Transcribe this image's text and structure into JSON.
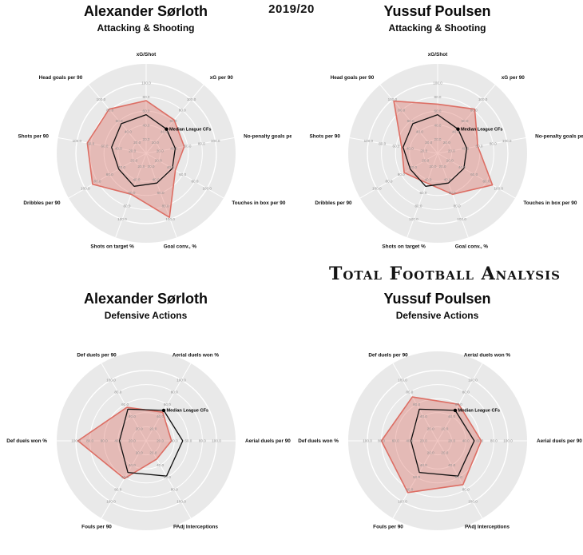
{
  "header": {
    "season": "2019/20",
    "brand": "Total Football Analysis"
  },
  "colors": {
    "player_fill": "rgba(221,110,100,0.38)",
    "player_stroke": "#dd6e64",
    "median_stroke": "#111111",
    "chart_bg": "#e9e9e9",
    "grid_line": "#ffffff"
  },
  "chart_data": [
    {
      "type": "radar",
      "title": "Alexander Sørloth",
      "subtitle": "Attacking & Shooting",
      "legend_label": "Median League CFs",
      "legend_axis": 1,
      "axis_range": [
        0,
        100
      ],
      "ring_ticks": [
        20,
        40,
        60,
        80,
        100
      ],
      "angles_deg": [
        -90,
        -50,
        -10,
        30,
        70,
        110,
        150,
        190,
        230
      ],
      "axes": [
        "xG/Shot",
        "xG per 90",
        "No-penalty goals per 90",
        "Touches in box per 90",
        "Goal conv., %",
        "Shots on target %",
        "Dribbles per 90",
        "Shots per 90",
        "Head goals per 90"
      ],
      "series": [
        {
          "name": "Alexander Sørloth",
          "values": [
            75,
            62,
            55,
            48,
            97,
            62,
            88,
            85,
            82
          ],
          "stroke": "#dd6e64",
          "fill": "rgba(221,110,100,0.38)",
          "width": 1.6
        },
        {
          "name": "Median League CFs",
          "values": [
            55,
            45,
            42,
            43,
            45,
            50,
            45,
            50,
            55
          ],
          "stroke": "#111111",
          "fill": "none",
          "width": 1.3
        }
      ]
    },
    {
      "type": "radar",
      "title": "Yussuf Poulsen",
      "subtitle": "Attacking & Shooting",
      "legend_label": "Median League CFs",
      "legend_axis": 1,
      "axis_range": [
        0,
        100
      ],
      "ring_ticks": [
        20,
        40,
        60,
        80,
        100
      ],
      "angles_deg": [
        -90,
        -50,
        -10,
        30,
        70,
        110,
        150,
        190,
        230
      ],
      "axes": [
        "xG/Shot",
        "xG per 90",
        "No-penalty goals per 90",
        "Touches in box per 90",
        "Goal conv., %",
        "Shots on target %",
        "Dribbles per 90",
        "Shots per 90",
        "Head goals per 90"
      ],
      "series": [
        {
          "name": "Yussuf Poulsen",
          "values": [
            70,
            82,
            58,
            90,
            62,
            45,
            55,
            52,
            97
          ],
          "stroke": "#dd6e64",
          "fill": "rgba(221,110,100,0.38)",
          "width": 1.6
        },
        {
          "name": "Median League CFs",
          "values": [
            55,
            45,
            42,
            43,
            45,
            50,
            45,
            50,
            55
          ],
          "stroke": "#111111",
          "fill": "none",
          "width": 1.3
        }
      ]
    },
    {
      "type": "radar",
      "title": "Alexander Sørloth",
      "subtitle": "Defensive Actions",
      "legend_label": "Median League CFs",
      "legend_axis": 1,
      "axis_range": [
        0,
        100
      ],
      "ring_ticks": [
        20,
        40,
        60,
        80,
        100
      ],
      "angles_deg": [
        -120,
        -60,
        0,
        60,
        120,
        180
      ],
      "axes": [
        "Def duels per 90",
        "Aerial duels won %",
        "Aerial duels per 90",
        "PAdj Interceptions",
        "Fouls per 90",
        "Def duels won %"
      ],
      "series": [
        {
          "name": "Alexander Sørloth",
          "values": [
            55,
            47,
            36,
            30,
            62,
            97
          ],
          "stroke": "#dd6e64",
          "fill": "rgba(221,110,100,0.38)",
          "width": 1.6
        },
        {
          "name": "Median League CFs",
          "values": [
            52,
            50,
            52,
            58,
            52,
            38
          ],
          "stroke": "#111111",
          "fill": "none",
          "width": 1.3
        }
      ]
    },
    {
      "type": "radar",
      "title": "Yussuf Poulsen",
      "subtitle": "Defensive Actions",
      "legend_label": "Median League CFs",
      "legend_axis": 1,
      "axis_range": [
        0,
        100
      ],
      "ring_ticks": [
        20,
        40,
        60,
        80,
        100
      ],
      "angles_deg": [
        -120,
        -60,
        0,
        60,
        120,
        180
      ],
      "axes": [
        "Def duels per 90",
        "Aerial duels won %",
        "Aerial duels per 90",
        "PAdj Interceptions",
        "Fouls per 90",
        "Def duels won %"
      ],
      "series": [
        {
          "name": "Yussuf Poulsen",
          "values": [
            72,
            60,
            62,
            72,
            85,
            80
          ],
          "stroke": "#dd6e64",
          "fill": "rgba(221,110,100,0.38)",
          "width": 1.6
        },
        {
          "name": "Median League CFs",
          "values": [
            52,
            50,
            52,
            58,
            52,
            38
          ],
          "stroke": "#111111",
          "fill": "none",
          "width": 1.3
        }
      ]
    }
  ]
}
